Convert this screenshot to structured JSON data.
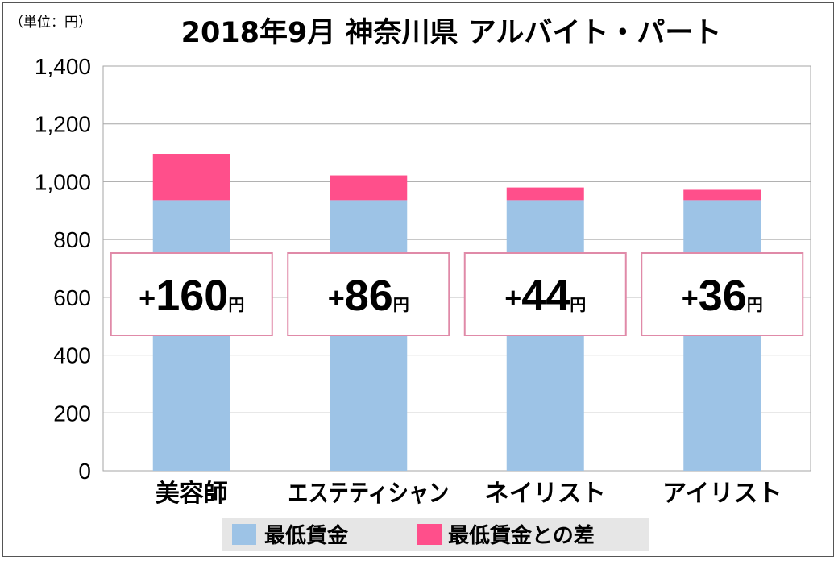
{
  "chart_data": {
    "type": "bar",
    "stacked": true,
    "title": "2018年9月 神奈川県 アルバイト・パート",
    "unit_note": "（単位：円）",
    "categories": [
      "美容師",
      "エステティシャン",
      "ネイリスト",
      "アイリスト"
    ],
    "series": [
      {
        "name": "最低賃金",
        "color": "#9dc3e6",
        "values": [
          936,
          936,
          936,
          936
        ]
      },
      {
        "name": "最低賃金との差",
        "color": "#ff4f8b",
        "values": [
          160,
          86,
          44,
          36
        ]
      }
    ],
    "difference_labels": [
      {
        "plus": "+",
        "value": "160",
        "unit": "円"
      },
      {
        "plus": "+",
        "value": "86",
        "unit": "円"
      },
      {
        "plus": "+",
        "value": "44",
        "unit": "円"
      },
      {
        "plus": "+",
        "value": "36",
        "unit": "円"
      }
    ],
    "ylim": [
      0,
      1400
    ],
    "yticks": [
      0,
      200,
      400,
      600,
      800,
      1000,
      1200,
      1400
    ],
    "ytick_labels": [
      "0",
      "200",
      "400",
      "600",
      "800",
      "1,000",
      "1,200",
      "1,400"
    ],
    "grid": true,
    "legend_position": "bottom",
    "label_box_border_color": "#e08aa8"
  }
}
